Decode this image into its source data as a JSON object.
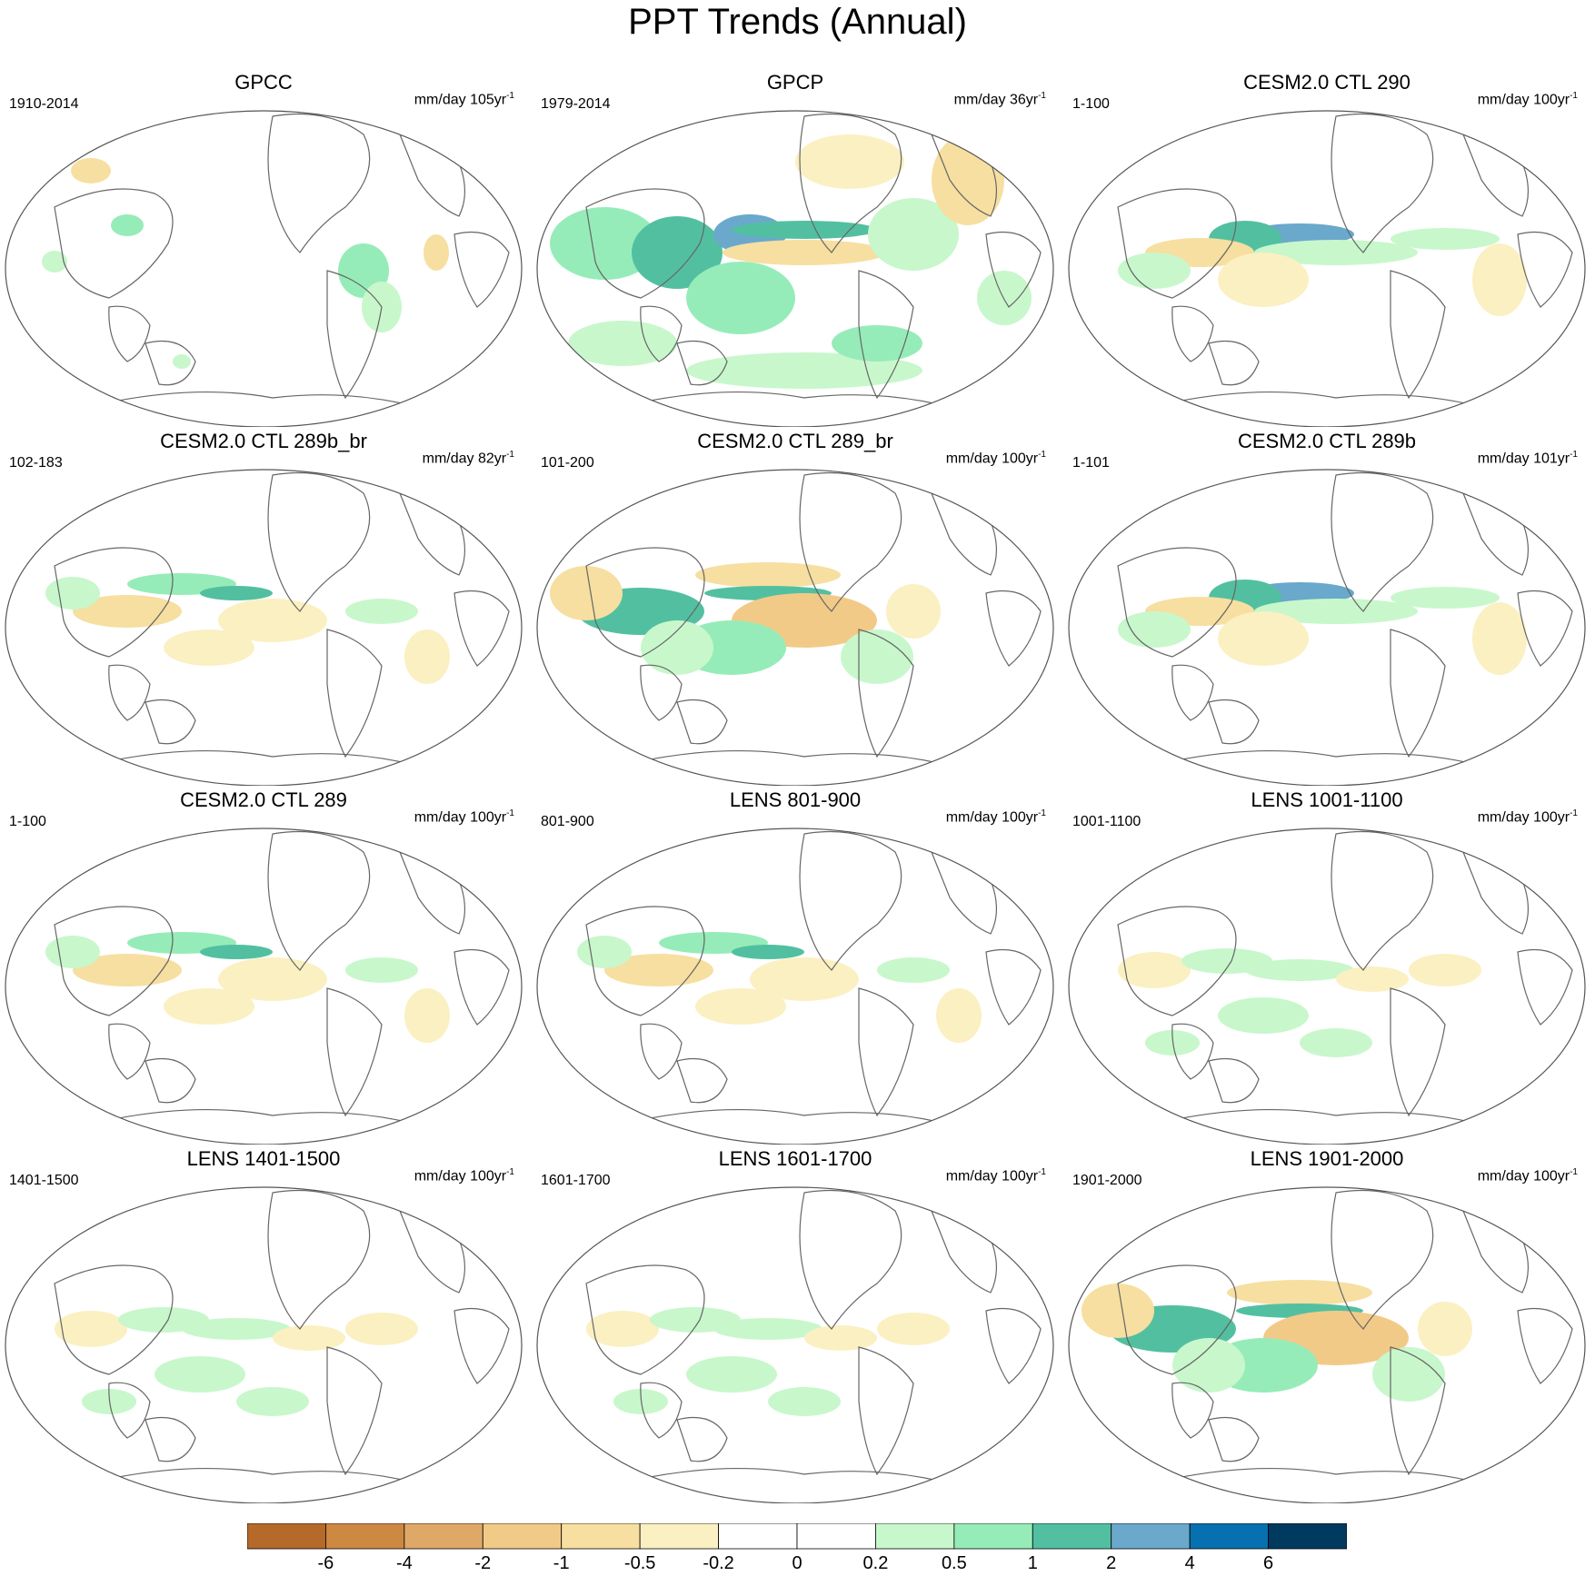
{
  "title": "PPT Trends (Annual)",
  "panels": [
    {
      "title": "GPCC",
      "period": "1910-2014",
      "units": "mm/day 105yr",
      "exp": "-1",
      "pattern": "obs_land"
    },
    {
      "title": "GPCP",
      "period": "1979-2014",
      "units": "mm/day 36yr",
      "exp": "-1",
      "pattern": "obs_strong"
    },
    {
      "title": "CESM2.0 CTL 290",
      "period": "1-100",
      "units": "mm/day 100yr",
      "exp": "-1",
      "pattern": "wet_east"
    },
    {
      "title": "CESM2.0 CTL 289b_br",
      "period": "102-183",
      "units": "mm/day 82yr",
      "exp": "-1",
      "pattern": "mild"
    },
    {
      "title": "CESM2.0 CTL 289_br",
      "period": "101-200",
      "units": "mm/day 100yr",
      "exp": "-1",
      "pattern": "strong_mix"
    },
    {
      "title": "CESM2.0 CTL 289b",
      "period": "1-101",
      "units": "mm/day 101yr",
      "exp": "-1",
      "pattern": "wet_east"
    },
    {
      "title": "CESM2.0 CTL 289",
      "period": "1-100",
      "units": "mm/day 100yr",
      "exp": "-1",
      "pattern": "mild"
    },
    {
      "title": "LENS 801-900",
      "period": "801-900",
      "units": "mm/day 100yr",
      "exp": "-1",
      "pattern": "mild"
    },
    {
      "title": "LENS 1001-1100",
      "period": "1001-1100",
      "units": "mm/day 100yr",
      "exp": "-1",
      "pattern": "weak"
    },
    {
      "title": "LENS 1401-1500",
      "period": "1401-1500",
      "units": "mm/day 100yr",
      "exp": "-1",
      "pattern": "weak"
    },
    {
      "title": "LENS 1601-1700",
      "period": "1601-1700",
      "units": "mm/day 100yr",
      "exp": "-1",
      "pattern": "weak"
    },
    {
      "title": "LENS 1901-2000",
      "period": "1901-2000",
      "units": "mm/day 100yr",
      "exp": "-1",
      "pattern": "strong_mix"
    }
  ],
  "colorbar": {
    "colors": [
      "#b5692a",
      "#cd8842",
      "#e0a866",
      "#f2ca88",
      "#f6dfa0",
      "#fbf0c2",
      "#ffffff",
      "#ffffff",
      "#c8f7cc",
      "#96ecb8",
      "#52c0a0",
      "#6aa8cc",
      "#0770b0",
      "#003a5e"
    ],
    "labels": [
      "-6",
      "-4",
      "-2",
      "-1",
      "-0.5",
      "-0.2",
      "0",
      "0.2",
      "0.5",
      "1",
      "2",
      "4",
      "6"
    ]
  }
}
